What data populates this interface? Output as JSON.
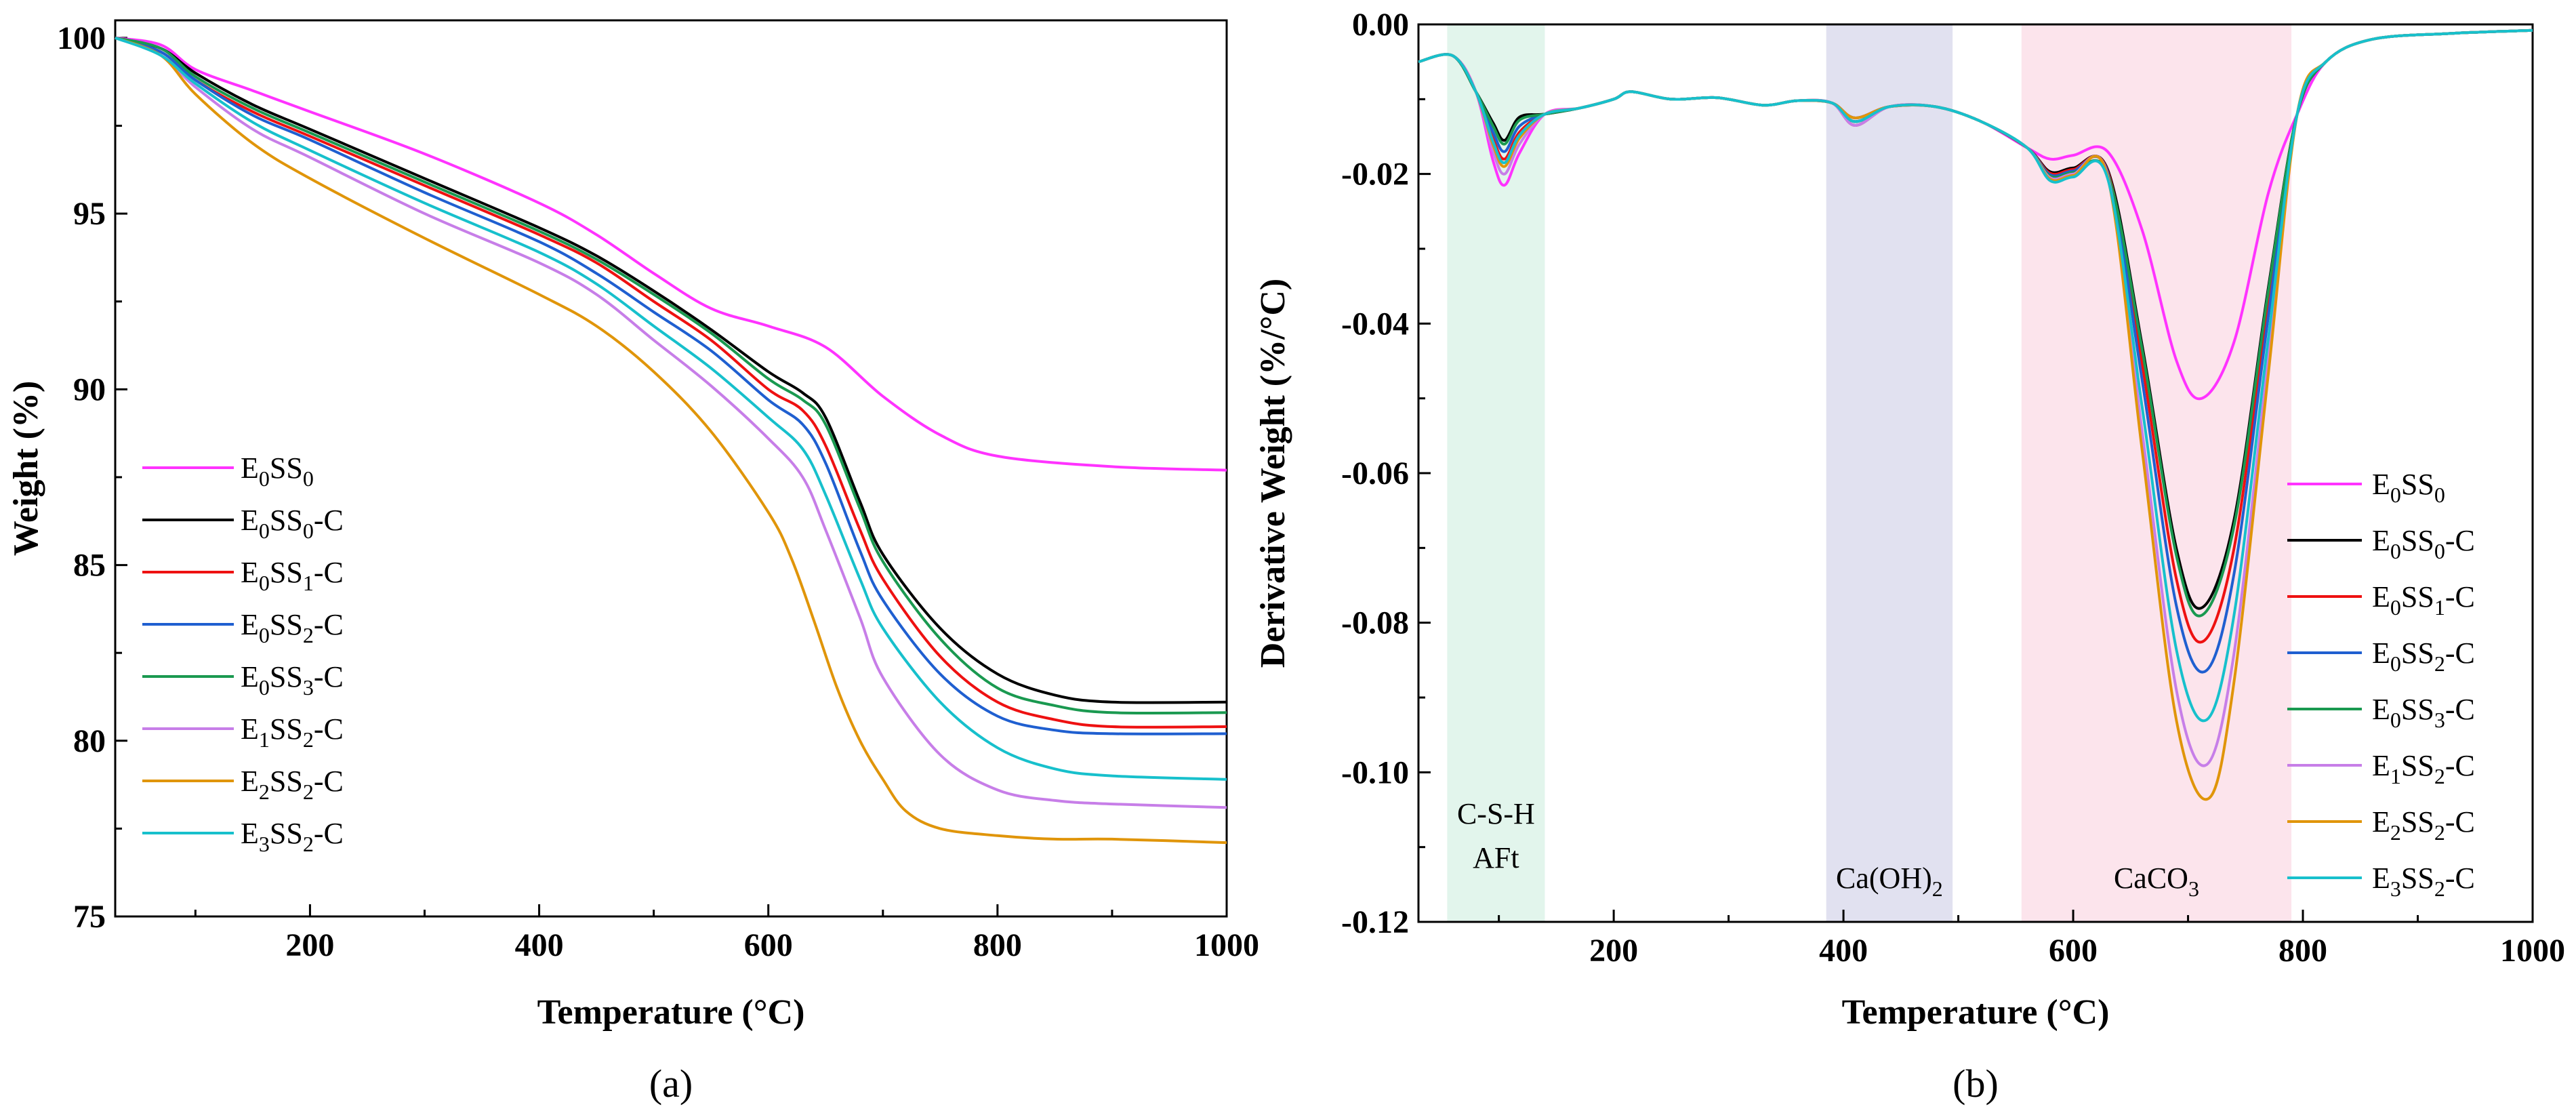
{
  "chart_data": [
    {
      "type": "line",
      "panel_label": "(a)",
      "xlabel": "Temperature (°C)",
      "ylabel": "Weight (%)",
      "xlim": [
        30,
        1000
      ],
      "ylim": [
        75,
        100.5
      ],
      "xticks": [
        200,
        400,
        600,
        800,
        1000
      ],
      "yticks": [
        75,
        80,
        85,
        90,
        95,
        100
      ],
      "legend_position": "lower-left",
      "series": [
        {
          "name": "E0SS0",
          "base": "E",
          "sub1": "0",
          "mid": "SS",
          "sub2": "0",
          "suffix": "",
          "color": "#ff33ff",
          "x": [
            30,
            70,
            100,
            150,
            200,
            300,
            400,
            450,
            500,
            550,
            600,
            650,
            700,
            750,
            800,
            900,
            1000
          ],
          "y": [
            100,
            99.8,
            99.1,
            98.5,
            97.9,
            96.7,
            95.3,
            94.4,
            93.3,
            92.3,
            91.8,
            91.2,
            89.8,
            88.7,
            88.1,
            87.8,
            87.7
          ]
        },
        {
          "name": "E0SS0-C",
          "base": "E",
          "sub1": "0",
          "mid": "SS",
          "sub2": "0",
          "suffix": "-C",
          "color": "#000000",
          "x": [
            30,
            70,
            100,
            150,
            200,
            300,
            400,
            450,
            500,
            550,
            600,
            630,
            650,
            680,
            700,
            750,
            800,
            850,
            900,
            1000
          ],
          "y": [
            100,
            99.7,
            99.0,
            98.1,
            97.4,
            96.0,
            94.6,
            93.8,
            92.8,
            91.7,
            90.5,
            89.9,
            89.2,
            86.8,
            85.3,
            83.2,
            81.9,
            81.3,
            81.1,
            81.1
          ]
        },
        {
          "name": "E0SS1-C",
          "base": "E",
          "sub1": "0",
          "mid": "SS",
          "sub2": "1",
          "suffix": "-C",
          "color": "#ee1111",
          "x": [
            30,
            70,
            100,
            150,
            200,
            300,
            400,
            450,
            500,
            550,
            600,
            630,
            650,
            680,
            700,
            750,
            800,
            850,
            900,
            1000
          ],
          "y": [
            100,
            99.6,
            98.8,
            97.9,
            97.2,
            95.8,
            94.4,
            93.6,
            92.5,
            91.4,
            90.0,
            89.4,
            88.4,
            86.0,
            84.6,
            82.4,
            81.1,
            80.6,
            80.4,
            80.4
          ]
        },
        {
          "name": "E0SS2-C",
          "base": "E",
          "sub1": "0",
          "mid": "SS",
          "sub2": "2",
          "suffix": "-C",
          "color": "#1f5fd0",
          "x": [
            30,
            70,
            100,
            150,
            200,
            300,
            400,
            450,
            500,
            550,
            600,
            630,
            650,
            680,
            700,
            750,
            800,
            850,
            900,
            1000
          ],
          "y": [
            100,
            99.6,
            98.8,
            97.8,
            97.1,
            95.6,
            94.2,
            93.3,
            92.2,
            91.1,
            89.7,
            89.0,
            87.9,
            85.4,
            84.0,
            81.9,
            80.7,
            80.3,
            80.2,
            80.2
          ]
        },
        {
          "name": "E0SS3-C",
          "base": "E",
          "sub1": "0",
          "mid": "SS",
          "sub2": "3",
          "suffix": "-C",
          "color": "#1a9950",
          "x": [
            30,
            70,
            100,
            150,
            200,
            300,
            400,
            450,
            500,
            550,
            600,
            630,
            650,
            680,
            700,
            750,
            800,
            850,
            900,
            1000
          ],
          "y": [
            100,
            99.7,
            98.9,
            98.0,
            97.3,
            95.9,
            94.5,
            93.7,
            92.7,
            91.6,
            90.3,
            89.7,
            89.0,
            86.6,
            85.1,
            82.9,
            81.5,
            81.0,
            80.8,
            80.8
          ]
        },
        {
          "name": "E1SS2-C",
          "base": "E",
          "sub1": "1",
          "mid": "SS",
          "sub2": "2",
          "suffix": "-C",
          "color": "#c77ee8",
          "x": [
            30,
            70,
            100,
            150,
            200,
            300,
            400,
            450,
            500,
            550,
            600,
            630,
            650,
            680,
            700,
            750,
            800,
            850,
            900,
            1000
          ],
          "y": [
            100,
            99.5,
            98.6,
            97.4,
            96.6,
            95.0,
            93.6,
            92.7,
            91.4,
            90.1,
            88.6,
            87.5,
            86.0,
            83.5,
            81.8,
            79.6,
            78.6,
            78.3,
            78.2,
            78.1
          ]
        },
        {
          "name": "E2SS2-C",
          "base": "E",
          "sub1": "2",
          "mid": "SS",
          "sub2": "2",
          "suffix": "-C",
          "color": "#e0950a",
          "x": [
            30,
            70,
            100,
            150,
            200,
            300,
            400,
            450,
            500,
            550,
            600,
            620,
            640,
            660,
            680,
            700,
            720,
            750,
            800,
            850,
            900,
            1000
          ],
          "y": [
            100,
            99.5,
            98.4,
            97.0,
            96.0,
            94.3,
            92.7,
            91.8,
            90.5,
            88.8,
            86.5,
            85.2,
            83.4,
            81.5,
            80.0,
            78.9,
            78.0,
            77.5,
            77.3,
            77.2,
            77.2,
            77.1
          ]
        },
        {
          "name": "E3SS2-C",
          "base": "E",
          "sub1": "3",
          "mid": "SS",
          "sub2": "2",
          "suffix": "-C",
          "color": "#17c0cc",
          "x": [
            30,
            70,
            100,
            150,
            200,
            300,
            400,
            450,
            500,
            550,
            600,
            630,
            650,
            680,
            700,
            750,
            800,
            850,
            900,
            1000
          ],
          "y": [
            100,
            99.5,
            98.7,
            97.6,
            96.8,
            95.3,
            93.9,
            93.0,
            91.8,
            90.6,
            89.2,
            88.3,
            87.0,
            84.6,
            83.2,
            81.1,
            79.8,
            79.2,
            79.0,
            78.9
          ]
        }
      ]
    },
    {
      "type": "line",
      "panel_label": "(b)",
      "xlabel": "Temperature (°C)",
      "ylabel": "Derivative Weight (%/°C)",
      "xlim": [
        30,
        1000
      ],
      "ylim": [
        -0.12,
        0
      ],
      "xticks": [
        200,
        400,
        600,
        800,
        1000
      ],
      "yticks": [
        "0.00",
        "-0.02",
        "-0.04",
        "-0.06",
        "-0.08",
        "-0.10",
        "-0.12"
      ],
      "legend_position": "lower-right",
      "shaded_regions": [
        {
          "x_range": [
            55,
            140
          ],
          "color": "#e2f5ec",
          "label_lines": [
            "C-S-H",
            "AFt"
          ]
        },
        {
          "x_range": [
            385,
            495
          ],
          "color": "#e1e1f0",
          "label_main": "Ca(OH)",
          "label_sub": "2"
        },
        {
          "x_range": [
            555,
            790
          ],
          "color": "#fce4ec",
          "label_main": "CaCO",
          "label_sub": "3"
        }
      ],
      "series_peak_values": [
        {
          "name": "E0SS0",
          "peak_dtg": -0.05,
          "peak_T": 712,
          "low_T_peak": -0.0215
        },
        {
          "name": "E0SS0-C",
          "peak_dtg": -0.078,
          "peak_T": 712,
          "low_T_peak": -0.0155
        },
        {
          "name": "E0SS1-C",
          "peak_dtg": -0.0825,
          "peak_T": 713,
          "low_T_peak": -0.018
        },
        {
          "name": "E0SS2-C",
          "peak_dtg": -0.0865,
          "peak_T": 715,
          "low_T_peak": -0.017
        },
        {
          "name": "E0SS3-C",
          "peak_dtg": -0.079,
          "peak_T": 712,
          "low_T_peak": -0.016
        },
        {
          "name": "E1SS2-C",
          "peak_dtg": -0.099,
          "peak_T": 716,
          "low_T_peak": -0.02
        },
        {
          "name": "E2SS2-C",
          "peak_dtg": -0.1035,
          "peak_T": 718,
          "low_T_peak": -0.019
        },
        {
          "name": "E3SS2-C",
          "peak_dtg": -0.093,
          "peak_T": 716,
          "low_T_peak": -0.0185
        }
      ]
    }
  ]
}
